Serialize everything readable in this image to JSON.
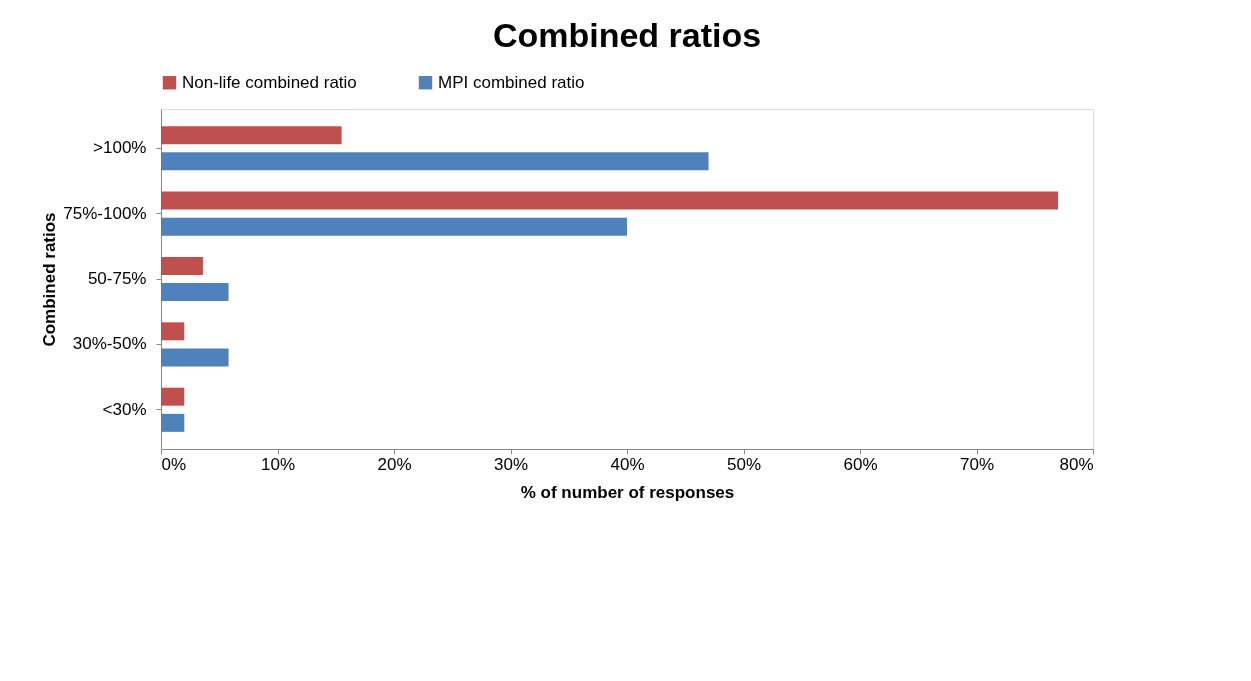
{
  "chart_data": {
    "type": "bar",
    "orientation": "horizontal",
    "title": "Combined ratios",
    "xlabel": "% of number of responses",
    "ylabel": "Combined ratios",
    "categories": [
      ">100%",
      "75%-100%",
      "50-75%",
      "30%-50%",
      "<30%"
    ],
    "series": [
      {
        "name": "Non-life combined ratio",
        "color": "#c0504d",
        "values": [
          15.5,
          77,
          3.6,
          2,
          2
        ]
      },
      {
        "name": "MPI combined ratio",
        "color": "#4f81bd",
        "values": [
          47,
          40,
          5.8,
          5.8,
          2
        ]
      }
    ],
    "xlim": [
      0,
      80
    ],
    "xticks": [
      {
        "value": 0,
        "label": "0%"
      },
      {
        "value": 10,
        "label": "10%"
      },
      {
        "value": 20,
        "label": "20%"
      },
      {
        "value": 30,
        "label": "30%"
      },
      {
        "value": 40,
        "label": "40%"
      },
      {
        "value": 50,
        "label": "50%"
      },
      {
        "value": 60,
        "label": "60%"
      },
      {
        "value": 70,
        "label": "70%"
      },
      {
        "value": 80,
        "label": "80%"
      }
    ],
    "grid": false,
    "legend": "top"
  }
}
